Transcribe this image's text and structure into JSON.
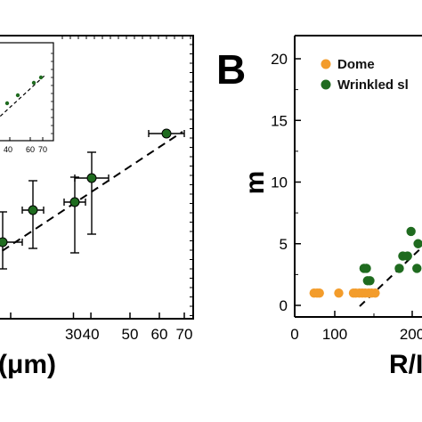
{
  "panel_label_b": "B",
  "chart_data": [
    {
      "type": "scatter",
      "panel": "A (partial)",
      "xlabel": "(μm)",
      "ylabel": "",
      "x_ticks": [
        "30",
        "40",
        "50",
        "60",
        "70"
      ],
      "x_scale": "log",
      "legend": "none",
      "fit": "dashed linear trend",
      "colors": {
        "points": "#1f6b1f"
      },
      "points": [
        {
          "x": 21,
          "y": 0.6,
          "xerr": 2.5,
          "yerr_lo": 0.6,
          "yerr_hi": 0.8
        },
        {
          "x": 28,
          "y": 1.6,
          "xerr": 2.5,
          "yerr_lo": 1.4,
          "yerr_hi": 1.4
        },
        {
          "x": 37,
          "y": 1.9,
          "xerr": 2.5,
          "yerr_lo": 1.3,
          "yerr_hi": 1.0
        },
        {
          "x": 40.5,
          "y": 3.0,
          "xerr": 3.5,
          "yerr_lo": 1.3,
          "yerr_hi": 1.3
        },
        {
          "x": 63,
          "y": 5.1,
          "xerr": 6.0,
          "yerr_lo": 0.3,
          "yerr_hi": 0.3
        }
      ],
      "inset": {
        "x_ticks": [
          "40",
          "60",
          "70"
        ],
        "points": [
          {
            "x": 0.35,
            "y": 0.25
          },
          {
            "x": 0.55,
            "y": 0.45
          },
          {
            "x": 0.75,
            "y": 0.65
          },
          {
            "x": 0.88,
            "y": 0.75
          }
        ]
      }
    },
    {
      "type": "scatter",
      "panel": "B",
      "xlabel": "R/I",
      "ylabel": "m",
      "x_ticks": [
        "0",
        "100",
        "200"
      ],
      "y_ticks": [
        "0",
        "5",
        "10",
        "15",
        "20"
      ],
      "ylim": [
        -1,
        22
      ],
      "xlim": [
        0,
        260
      ],
      "legend": "top-left",
      "series": [
        {
          "name": "Dome",
          "color": "#f39c2b",
          "points": [
            [
              33,
              1
            ],
            [
              38,
              1
            ],
            [
              42,
              1
            ],
            [
              75,
              1
            ],
            [
              100,
              1
            ],
            [
              104,
              1
            ],
            [
              110,
              1
            ],
            [
              115,
              1
            ],
            [
              120,
              1
            ],
            [
              126,
              1
            ],
            [
              131,
              1
            ],
            [
              137,
              1
            ]
          ]
        },
        {
          "name": "Wrinkled sl",
          "color": "#1f6b1f",
          "points": [
            [
              118,
              3
            ],
            [
              122,
              3
            ],
            [
              124,
              2
            ],
            [
              128,
              2
            ],
            [
              178,
              3
            ],
            [
              184,
              4
            ],
            [
              192,
              4
            ],
            [
              198,
              6
            ],
            [
              208,
              3
            ],
            [
              210,
              5
            ]
          ]
        }
      ],
      "fit": "dashed linear trend"
    }
  ]
}
